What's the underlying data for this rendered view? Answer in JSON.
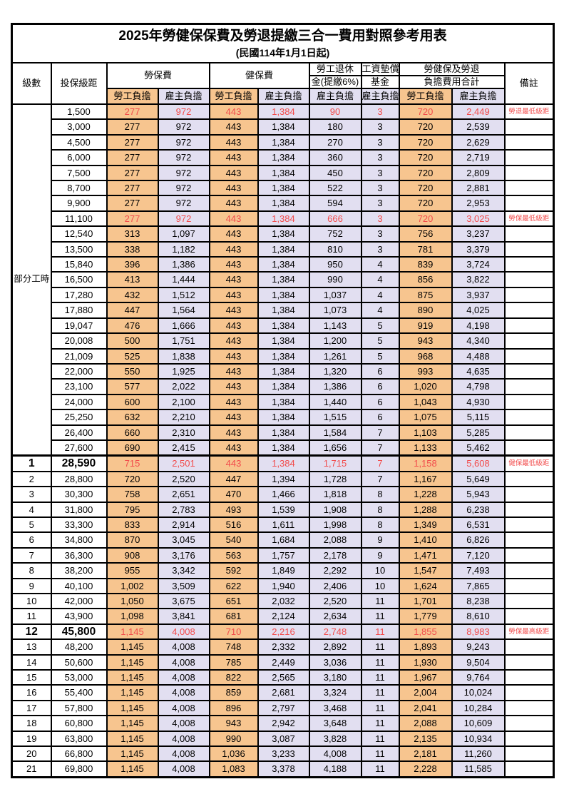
{
  "title": "2025年勞健保保費及勞退提繳三合一費用對照參考用表",
  "subtitle": "(民國114年1月1日起)",
  "colors": {
    "employee_share_bg": "#F7C58F",
    "employer_share_bg": "#E2DFF1",
    "highlight_red": "#F24C4C",
    "border": "#000000"
  },
  "header": {
    "level": "級數",
    "salary_bracket": "投保級距",
    "labor_insurance": "勞保費",
    "health_insurance": "健保費",
    "pension_line1": "勞工退休",
    "pension_line2": "金(提繳6%)",
    "wage_fund_line1": "工資墊償",
    "wage_fund_line2": "基金",
    "total_line1": "勞健保及勞退",
    "total_line2": "負擔費用合計",
    "remark": "備註",
    "employee_share": "勞工負擔",
    "employer_share": "雇主負擔"
  },
  "group_label": "部分工時",
  "rows": [
    {
      "group": "部分工時",
      "group_span": 23,
      "salary": "1,500",
      "li_emp": "277",
      "li_er": "972",
      "hi_emp": "443",
      "hi_er": "1,384",
      "pension": "90",
      "fund": "3",
      "tot_emp": "720",
      "tot_er": "2,449",
      "remark": "勞退最低級距",
      "red": true
    },
    {
      "salary": "3,000",
      "li_emp": "277",
      "li_er": "972",
      "hi_emp": "443",
      "hi_er": "1,384",
      "pension": "180",
      "fund": "3",
      "tot_emp": "720",
      "tot_er": "2,539",
      "remark": ""
    },
    {
      "salary": "4,500",
      "li_emp": "277",
      "li_er": "972",
      "hi_emp": "443",
      "hi_er": "1,384",
      "pension": "270",
      "fund": "3",
      "tot_emp": "720",
      "tot_er": "2,629",
      "remark": ""
    },
    {
      "salary": "6,000",
      "li_emp": "277",
      "li_er": "972",
      "hi_emp": "443",
      "hi_er": "1,384",
      "pension": "360",
      "fund": "3",
      "tot_emp": "720",
      "tot_er": "2,719",
      "remark": ""
    },
    {
      "salary": "7,500",
      "li_emp": "277",
      "li_er": "972",
      "hi_emp": "443",
      "hi_er": "1,384",
      "pension": "450",
      "fund": "3",
      "tot_emp": "720",
      "tot_er": "2,809",
      "remark": ""
    },
    {
      "salary": "8,700",
      "li_emp": "277",
      "li_er": "972",
      "hi_emp": "443",
      "hi_er": "1,384",
      "pension": "522",
      "fund": "3",
      "tot_emp": "720",
      "tot_er": "2,881",
      "remark": ""
    },
    {
      "salary": "9,900",
      "li_emp": "277",
      "li_er": "972",
      "hi_emp": "443",
      "hi_er": "1,384",
      "pension": "594",
      "fund": "3",
      "tot_emp": "720",
      "tot_er": "2,953",
      "remark": ""
    },
    {
      "salary": "11,100",
      "li_emp": "277",
      "li_er": "972",
      "hi_emp": "443",
      "hi_er": "1,384",
      "pension": "666",
      "fund": "3",
      "tot_emp": "720",
      "tot_er": "3,025",
      "remark": "勞保最低級距",
      "red": true
    },
    {
      "salary": "12,540",
      "li_emp": "313",
      "li_er": "1,097",
      "hi_emp": "443",
      "hi_er": "1,384",
      "pension": "752",
      "fund": "3",
      "tot_emp": "756",
      "tot_er": "3,237",
      "remark": ""
    },
    {
      "salary": "13,500",
      "li_emp": "338",
      "li_er": "1,182",
      "hi_emp": "443",
      "hi_er": "1,384",
      "pension": "810",
      "fund": "3",
      "tot_emp": "781",
      "tot_er": "3,379",
      "remark": ""
    },
    {
      "salary": "15,840",
      "li_emp": "396",
      "li_er": "1,386",
      "hi_emp": "443",
      "hi_er": "1,384",
      "pension": "950",
      "fund": "4",
      "tot_emp": "839",
      "tot_er": "3,724",
      "remark": ""
    },
    {
      "salary": "16,500",
      "li_emp": "413",
      "li_er": "1,444",
      "hi_emp": "443",
      "hi_er": "1,384",
      "pension": "990",
      "fund": "4",
      "tot_emp": "856",
      "tot_er": "3,822",
      "remark": ""
    },
    {
      "salary": "17,280",
      "li_emp": "432",
      "li_er": "1,512",
      "hi_emp": "443",
      "hi_er": "1,384",
      "pension": "1,037",
      "fund": "4",
      "tot_emp": "875",
      "tot_er": "3,937",
      "remark": ""
    },
    {
      "salary": "17,880",
      "li_emp": "447",
      "li_er": "1,564",
      "hi_emp": "443",
      "hi_er": "1,384",
      "pension": "1,073",
      "fund": "4",
      "tot_emp": "890",
      "tot_er": "4,025",
      "remark": ""
    },
    {
      "salary": "19,047",
      "li_emp": "476",
      "li_er": "1,666",
      "hi_emp": "443",
      "hi_er": "1,384",
      "pension": "1,143",
      "fund": "5",
      "tot_emp": "919",
      "tot_er": "4,198",
      "remark": ""
    },
    {
      "salary": "20,008",
      "li_emp": "500",
      "li_er": "1,751",
      "hi_emp": "443",
      "hi_er": "1,384",
      "pension": "1,200",
      "fund": "5",
      "tot_emp": "943",
      "tot_er": "4,340",
      "remark": ""
    },
    {
      "salary": "21,009",
      "li_emp": "525",
      "li_er": "1,838",
      "hi_emp": "443",
      "hi_er": "1,384",
      "pension": "1,261",
      "fund": "5",
      "tot_emp": "968",
      "tot_er": "4,488",
      "remark": ""
    },
    {
      "salary": "22,000",
      "li_emp": "550",
      "li_er": "1,925",
      "hi_emp": "443",
      "hi_er": "1,384",
      "pension": "1,320",
      "fund": "6",
      "tot_emp": "993",
      "tot_er": "4,635",
      "remark": ""
    },
    {
      "salary": "23,100",
      "li_emp": "577",
      "li_er": "2,022",
      "hi_emp": "443",
      "hi_er": "1,384",
      "pension": "1,386",
      "fund": "6",
      "tot_emp": "1,020",
      "tot_er": "4,798",
      "remark": ""
    },
    {
      "salary": "24,000",
      "li_emp": "600",
      "li_er": "2,100",
      "hi_emp": "443",
      "hi_er": "1,384",
      "pension": "1,440",
      "fund": "6",
      "tot_emp": "1,043",
      "tot_er": "4,930",
      "remark": ""
    },
    {
      "salary": "25,250",
      "li_emp": "632",
      "li_er": "2,210",
      "hi_emp": "443",
      "hi_er": "1,384",
      "pension": "1,515",
      "fund": "6",
      "tot_emp": "1,075",
      "tot_er": "5,115",
      "remark": ""
    },
    {
      "salary": "26,400",
      "li_emp": "660",
      "li_er": "2,310",
      "hi_emp": "443",
      "hi_er": "1,384",
      "pension": "1,584",
      "fund": "7",
      "tot_emp": "1,103",
      "tot_er": "5,285",
      "remark": ""
    },
    {
      "salary": "27,600",
      "li_emp": "690",
      "li_er": "2,415",
      "hi_emp": "443",
      "hi_er": "1,384",
      "pension": "1,656",
      "fund": "7",
      "tot_emp": "1,133",
      "tot_er": "5,462",
      "remark": ""
    },
    {
      "level": "1",
      "salary": "28,590",
      "li_emp": "715",
      "li_er": "2,501",
      "hi_emp": "443",
      "hi_er": "1,384",
      "pension": "1,715",
      "fund": "7",
      "tot_emp": "1,158",
      "tot_er": "5,608",
      "remark": "健保最低級距",
      "red": true,
      "big": true,
      "sec": true
    },
    {
      "level": "2",
      "salary": "28,800",
      "li_emp": "720",
      "li_er": "2,520",
      "hi_emp": "447",
      "hi_er": "1,394",
      "pension": "1,728",
      "fund": "7",
      "tot_emp": "1,167",
      "tot_er": "5,649",
      "remark": ""
    },
    {
      "level": "3",
      "salary": "30,300",
      "li_emp": "758",
      "li_er": "2,651",
      "hi_emp": "470",
      "hi_er": "1,466",
      "pension": "1,818",
      "fund": "8",
      "tot_emp": "1,228",
      "tot_er": "5,943",
      "remark": ""
    },
    {
      "level": "4",
      "salary": "31,800",
      "li_emp": "795",
      "li_er": "2,783",
      "hi_emp": "493",
      "hi_er": "1,539",
      "pension": "1,908",
      "fund": "8",
      "tot_emp": "1,288",
      "tot_er": "6,238",
      "remark": ""
    },
    {
      "level": "5",
      "salary": "33,300",
      "li_emp": "833",
      "li_er": "2,914",
      "hi_emp": "516",
      "hi_er": "1,611",
      "pension": "1,998",
      "fund": "8",
      "tot_emp": "1,349",
      "tot_er": "6,531",
      "remark": ""
    },
    {
      "level": "6",
      "salary": "34,800",
      "li_emp": "870",
      "li_er": "3,045",
      "hi_emp": "540",
      "hi_er": "1,684",
      "pension": "2,088",
      "fund": "9",
      "tot_emp": "1,410",
      "tot_er": "6,826",
      "remark": ""
    },
    {
      "level": "7",
      "salary": "36,300",
      "li_emp": "908",
      "li_er": "3,176",
      "hi_emp": "563",
      "hi_er": "1,757",
      "pension": "2,178",
      "fund": "9",
      "tot_emp": "1,471",
      "tot_er": "7,120",
      "remark": ""
    },
    {
      "level": "8",
      "salary": "38,200",
      "li_emp": "955",
      "li_er": "3,342",
      "hi_emp": "592",
      "hi_er": "1,849",
      "pension": "2,292",
      "fund": "10",
      "tot_emp": "1,547",
      "tot_er": "7,493",
      "remark": ""
    },
    {
      "level": "9",
      "salary": "40,100",
      "li_emp": "1,002",
      "li_er": "3,509",
      "hi_emp": "622",
      "hi_er": "1,940",
      "pension": "2,406",
      "fund": "10",
      "tot_emp": "1,624",
      "tot_er": "7,865",
      "remark": ""
    },
    {
      "level": "10",
      "salary": "42,000",
      "li_emp": "1,050",
      "li_er": "3,675",
      "hi_emp": "651",
      "hi_er": "2,032",
      "pension": "2,520",
      "fund": "11",
      "tot_emp": "1,701",
      "tot_er": "8,238",
      "remark": ""
    },
    {
      "level": "11",
      "salary": "43,900",
      "li_emp": "1,098",
      "li_er": "3,841",
      "hi_emp": "681",
      "hi_er": "2,124",
      "pension": "2,634",
      "fund": "11",
      "tot_emp": "1,779",
      "tot_er": "8,610",
      "remark": ""
    },
    {
      "level": "12",
      "salary": "45,800",
      "li_emp": "1,145",
      "li_er": "4,008",
      "hi_emp": "710",
      "hi_er": "2,216",
      "pension": "2,748",
      "fund": "11",
      "tot_emp": "1,855",
      "tot_er": "8,983",
      "remark": "勞保最高級距",
      "red": true,
      "big": true
    },
    {
      "level": "13",
      "salary": "48,200",
      "li_emp": "1,145",
      "li_er": "4,008",
      "hi_emp": "748",
      "hi_er": "2,332",
      "pension": "2,892",
      "fund": "11",
      "tot_emp": "1,893",
      "tot_er": "9,243",
      "remark": ""
    },
    {
      "level": "14",
      "salary": "50,600",
      "li_emp": "1,145",
      "li_er": "4,008",
      "hi_emp": "785",
      "hi_er": "2,449",
      "pension": "3,036",
      "fund": "11",
      "tot_emp": "1,930",
      "tot_er": "9,504",
      "remark": ""
    },
    {
      "level": "15",
      "salary": "53,000",
      "li_emp": "1,145",
      "li_er": "4,008",
      "hi_emp": "822",
      "hi_er": "2,565",
      "pension": "3,180",
      "fund": "11",
      "tot_emp": "1,967",
      "tot_er": "9,764",
      "remark": ""
    },
    {
      "level": "16",
      "salary": "55,400",
      "li_emp": "1,145",
      "li_er": "4,008",
      "hi_emp": "859",
      "hi_er": "2,681",
      "pension": "3,324",
      "fund": "11",
      "tot_emp": "2,004",
      "tot_er": "10,024",
      "remark": ""
    },
    {
      "level": "17",
      "salary": "57,800",
      "li_emp": "1,145",
      "li_er": "4,008",
      "hi_emp": "896",
      "hi_er": "2,797",
      "pension": "3,468",
      "fund": "11",
      "tot_emp": "2,041",
      "tot_er": "10,284",
      "remark": ""
    },
    {
      "level": "18",
      "salary": "60,800",
      "li_emp": "1,145",
      "li_er": "4,008",
      "hi_emp": "943",
      "hi_er": "2,942",
      "pension": "3,648",
      "fund": "11",
      "tot_emp": "2,088",
      "tot_er": "10,609",
      "remark": ""
    },
    {
      "level": "19",
      "salary": "63,800",
      "li_emp": "1,145",
      "li_er": "4,008",
      "hi_emp": "990",
      "hi_er": "3,087",
      "pension": "3,828",
      "fund": "11",
      "tot_emp": "2,135",
      "tot_er": "10,934",
      "remark": ""
    },
    {
      "level": "20",
      "salary": "66,800",
      "li_emp": "1,145",
      "li_er": "4,008",
      "hi_emp": "1,036",
      "hi_er": "3,233",
      "pension": "4,008",
      "fund": "11",
      "tot_emp": "2,181",
      "tot_er": "11,260",
      "remark": ""
    },
    {
      "level": "21",
      "salary": "69,800",
      "li_emp": "1,145",
      "li_er": "4,008",
      "hi_emp": "1,083",
      "hi_er": "3,378",
      "pension": "4,188",
      "fund": "11",
      "tot_emp": "2,228",
      "tot_er": "11,585",
      "remark": ""
    }
  ]
}
